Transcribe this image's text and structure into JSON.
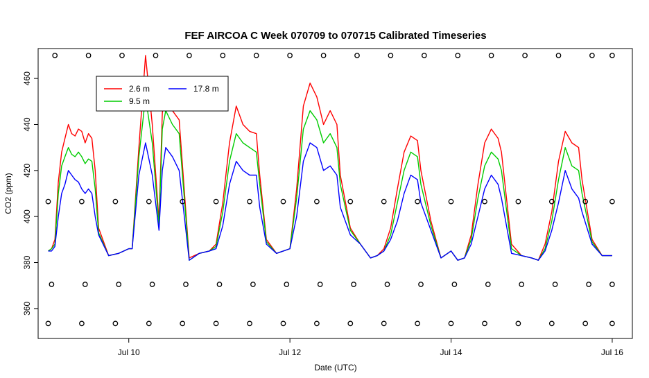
{
  "chart_data": {
    "type": "line",
    "title": "FEF AIRCOA C  Week 070709 to 070715  Calibrated Timeseries",
    "xlabel": "Date (UTC)",
    "ylabel": "CO2 (ppm)",
    "xlim": [
      "2007-07-08T21:00",
      "2007-07-16T06:00"
    ],
    "ylim": [
      347,
      473
    ],
    "x_ticks": [
      {
        "date": "2007-07-10T00:00",
        "label": "Jul 10"
      },
      {
        "date": "2007-07-12T00:00",
        "label": "Jul 12"
      },
      {
        "date": "2007-07-14T00:00",
        "label": "Jul 14"
      },
      {
        "date": "2007-07-16T00:00",
        "label": "Jul 16"
      }
    ],
    "y_ticks": [
      360,
      380,
      400,
      420,
      440,
      460
    ],
    "grid": false,
    "legend_position": "top-left",
    "legend": [
      {
        "label": "2.6 m",
        "color": "#ff0000"
      },
      {
        "label": "17.8 m",
        "color": "#0000ff"
      },
      {
        "label": "9.5 m",
        "color": "#00cc00"
      }
    ],
    "series": [
      {
        "name": "2.6 m",
        "color": "#ff0000",
        "x": [
          "2007-07-09T00:00",
          "2007-07-09T01:00",
          "2007-07-09T02:00",
          "2007-07-09T03:00",
          "2007-07-09T04:00",
          "2007-07-09T05:00",
          "2007-07-09T06:00",
          "2007-07-09T07:00",
          "2007-07-09T08:00",
          "2007-07-09T09:00",
          "2007-07-09T10:00",
          "2007-07-09T11:00",
          "2007-07-09T12:00",
          "2007-07-09T13:00",
          "2007-07-09T14:00",
          "2007-07-09T15:00",
          "2007-07-09T18:00",
          "2007-07-09T21:00",
          "2007-07-10T00:00",
          "2007-07-10T01:00",
          "2007-07-10T03:00",
          "2007-07-10T05:00",
          "2007-07-10T07:00",
          "2007-07-10T09:00",
          "2007-07-10T10:00",
          "2007-07-10T11:00",
          "2007-07-10T13:00",
          "2007-07-10T15:00",
          "2007-07-10T18:00",
          "2007-07-10T21:00",
          "2007-07-11T00:00",
          "2007-07-11T02:00",
          "2007-07-11T04:00",
          "2007-07-11T06:00",
          "2007-07-11T08:00",
          "2007-07-11T10:00",
          "2007-07-11T12:00",
          "2007-07-11T14:00",
          "2007-07-11T15:00",
          "2007-07-11T17:00",
          "2007-07-11T20:00",
          "2007-07-12T00:00",
          "2007-07-12T02:00",
          "2007-07-12T04:00",
          "2007-07-12T06:00",
          "2007-07-12T08:00",
          "2007-07-12T10:00",
          "2007-07-12T12:00",
          "2007-07-12T14:00",
          "2007-07-12T15:00",
          "2007-07-12T18:00",
          "2007-07-12T21:00",
          "2007-07-13T00:00",
          "2007-07-13T02:00",
          "2007-07-13T04:00",
          "2007-07-13T06:00",
          "2007-07-13T08:00",
          "2007-07-13T10:00",
          "2007-07-13T12:00",
          "2007-07-13T14:00",
          "2007-07-13T15:00",
          "2007-07-13T18:00",
          "2007-07-13T21:00",
          "2007-07-14T00:00",
          "2007-07-14T02:00",
          "2007-07-14T04:00",
          "2007-07-14T06:00",
          "2007-07-14T08:00",
          "2007-07-14T10:00",
          "2007-07-14T12:00",
          "2007-07-14T14:00",
          "2007-07-14T15:00",
          "2007-07-14T18:00",
          "2007-07-14T21:00",
          "2007-07-15T00:00",
          "2007-07-15T02:00",
          "2007-07-15T04:00",
          "2007-07-15T06:00",
          "2007-07-15T08:00",
          "2007-07-15T10:00",
          "2007-07-15T12:00",
          "2007-07-15T14:00",
          "2007-07-15T15:00",
          "2007-07-15T18:00",
          "2007-07-15T21:00",
          "2007-07-16T00:00"
        ],
        "values": [
          385,
          386,
          390,
          415,
          428,
          434,
          440,
          436,
          435,
          438,
          437,
          432,
          436,
          434,
          420,
          395,
          383,
          384,
          386,
          386,
          430,
          470,
          440,
          398,
          445,
          455,
          446,
          442,
          382,
          384,
          385,
          388,
          406,
          432,
          448,
          440,
          437,
          436,
          418,
          390,
          384,
          386,
          412,
          448,
          458,
          452,
          440,
          446,
          440,
          418,
          395,
          388,
          382,
          383,
          386,
          395,
          412,
          428,
          435,
          433,
          420,
          398,
          382,
          385,
          381,
          382,
          392,
          414,
          432,
          438,
          434,
          428,
          388,
          383,
          382,
          381,
          388,
          402,
          424,
          437,
          432,
          430,
          416,
          390,
          383,
          383
        ]
      },
      {
        "name": "9.5 m",
        "color": "#00cc00",
        "x": [
          "2007-07-09T00:00",
          "2007-07-09T01:00",
          "2007-07-09T02:00",
          "2007-07-09T03:00",
          "2007-07-09T04:00",
          "2007-07-09T05:00",
          "2007-07-09T06:00",
          "2007-07-09T07:00",
          "2007-07-09T08:00",
          "2007-07-09T09:00",
          "2007-07-09T10:00",
          "2007-07-09T11:00",
          "2007-07-09T12:00",
          "2007-07-09T13:00",
          "2007-07-09T14:00",
          "2007-07-09T15:00",
          "2007-07-09T18:00",
          "2007-07-09T21:00",
          "2007-07-10T00:00",
          "2007-07-10T01:00",
          "2007-07-10T03:00",
          "2007-07-10T05:00",
          "2007-07-10T07:00",
          "2007-07-10T09:00",
          "2007-07-10T10:00",
          "2007-07-10T11:00",
          "2007-07-10T13:00",
          "2007-07-10T15:00",
          "2007-07-10T18:00",
          "2007-07-10T21:00",
          "2007-07-11T00:00",
          "2007-07-11T02:00",
          "2007-07-11T04:00",
          "2007-07-11T06:00",
          "2007-07-11T08:00",
          "2007-07-11T10:00",
          "2007-07-11T12:00",
          "2007-07-11T14:00",
          "2007-07-11T15:00",
          "2007-07-11T17:00",
          "2007-07-11T20:00",
          "2007-07-12T00:00",
          "2007-07-12T02:00",
          "2007-07-12T04:00",
          "2007-07-12T06:00",
          "2007-07-12T08:00",
          "2007-07-12T10:00",
          "2007-07-12T12:00",
          "2007-07-12T14:00",
          "2007-07-12T15:00",
          "2007-07-12T18:00",
          "2007-07-12T21:00",
          "2007-07-13T00:00",
          "2007-07-13T02:00",
          "2007-07-13T04:00",
          "2007-07-13T06:00",
          "2007-07-13T08:00",
          "2007-07-13T10:00",
          "2007-07-13T12:00",
          "2007-07-13T14:00",
          "2007-07-13T15:00",
          "2007-07-13T18:00",
          "2007-07-13T21:00",
          "2007-07-14T00:00",
          "2007-07-14T02:00",
          "2007-07-14T04:00",
          "2007-07-14T06:00",
          "2007-07-14T08:00",
          "2007-07-14T10:00",
          "2007-07-14T12:00",
          "2007-07-14T14:00",
          "2007-07-14T15:00",
          "2007-07-14T18:00",
          "2007-07-14T21:00",
          "2007-07-15T00:00",
          "2007-07-15T02:00",
          "2007-07-15T04:00",
          "2007-07-15T06:00",
          "2007-07-15T08:00",
          "2007-07-15T10:00",
          "2007-07-15T12:00",
          "2007-07-15T14:00",
          "2007-07-15T15:00",
          "2007-07-15T18:00",
          "2007-07-15T21:00",
          "2007-07-16T00:00"
        ],
        "values": [
          385,
          386,
          388,
          410,
          422,
          426,
          430,
          427,
          426,
          428,
          426,
          423,
          425,
          424,
          412,
          393,
          383,
          384,
          386,
          386,
          426,
          452,
          432,
          396,
          438,
          446,
          440,
          436,
          381,
          384,
          385,
          387,
          402,
          424,
          436,
          432,
          430,
          428,
          414,
          389,
          384,
          386,
          408,
          438,
          446,
          442,
          432,
          436,
          430,
          414,
          394,
          388,
          382,
          383,
          385,
          392,
          406,
          420,
          428,
          426,
          414,
          396,
          382,
          385,
          381,
          382,
          390,
          408,
          422,
          428,
          425,
          420,
          386,
          383,
          382,
          381,
          386,
          398,
          416,
          430,
          422,
          420,
          410,
          389,
          383,
          383
        ]
      },
      {
        "name": "17.8 m",
        "color": "#0000ff",
        "x": [
          "2007-07-09T00:00",
          "2007-07-09T01:00",
          "2007-07-09T02:00",
          "2007-07-09T03:00",
          "2007-07-09T04:00",
          "2007-07-09T05:00",
          "2007-07-09T06:00",
          "2007-07-09T07:00",
          "2007-07-09T08:00",
          "2007-07-09T09:00",
          "2007-07-09T10:00",
          "2007-07-09T11:00",
          "2007-07-09T12:00",
          "2007-07-09T13:00",
          "2007-07-09T14:00",
          "2007-07-09T15:00",
          "2007-07-09T18:00",
          "2007-07-09T21:00",
          "2007-07-10T00:00",
          "2007-07-10T01:00",
          "2007-07-10T03:00",
          "2007-07-10T05:00",
          "2007-07-10T07:00",
          "2007-07-10T09:00",
          "2007-07-10T10:00",
          "2007-07-10T11:00",
          "2007-07-10T13:00",
          "2007-07-10T15:00",
          "2007-07-10T18:00",
          "2007-07-10T21:00",
          "2007-07-11T00:00",
          "2007-07-11T02:00",
          "2007-07-11T04:00",
          "2007-07-11T06:00",
          "2007-07-11T08:00",
          "2007-07-11T10:00",
          "2007-07-11T12:00",
          "2007-07-11T14:00",
          "2007-07-11T15:00",
          "2007-07-11T17:00",
          "2007-07-11T20:00",
          "2007-07-12T00:00",
          "2007-07-12T02:00",
          "2007-07-12T04:00",
          "2007-07-12T06:00",
          "2007-07-12T08:00",
          "2007-07-12T10:00",
          "2007-07-12T12:00",
          "2007-07-12T14:00",
          "2007-07-12T15:00",
          "2007-07-12T18:00",
          "2007-07-12T21:00",
          "2007-07-13T00:00",
          "2007-07-13T02:00",
          "2007-07-13T04:00",
          "2007-07-13T06:00",
          "2007-07-13T08:00",
          "2007-07-13T10:00",
          "2007-07-13T12:00",
          "2007-07-13T14:00",
          "2007-07-13T15:00",
          "2007-07-13T18:00",
          "2007-07-13T21:00",
          "2007-07-14T00:00",
          "2007-07-14T02:00",
          "2007-07-14T04:00",
          "2007-07-14T06:00",
          "2007-07-14T08:00",
          "2007-07-14T10:00",
          "2007-07-14T12:00",
          "2007-07-14T14:00",
          "2007-07-14T15:00",
          "2007-07-14T18:00",
          "2007-07-14T21:00",
          "2007-07-15T00:00",
          "2007-07-15T02:00",
          "2007-07-15T04:00",
          "2007-07-15T06:00",
          "2007-07-15T08:00",
          "2007-07-15T10:00",
          "2007-07-15T12:00",
          "2007-07-15T14:00",
          "2007-07-15T15:00",
          "2007-07-15T18:00",
          "2007-07-15T21:00",
          "2007-07-16T00:00"
        ],
        "values": [
          385,
          385,
          387,
          400,
          410,
          414,
          420,
          418,
          416,
          415,
          412,
          410,
          412,
          410,
          400,
          392,
          383,
          384,
          386,
          386,
          418,
          432,
          418,
          394,
          420,
          430,
          426,
          420,
          381,
          384,
          385,
          386,
          396,
          414,
          424,
          420,
          418,
          418,
          404,
          388,
          384,
          386,
          400,
          424,
          432,
          430,
          420,
          422,
          418,
          404,
          392,
          388,
          382,
          383,
          385,
          390,
          398,
          410,
          418,
          416,
          406,
          394,
          382,
          385,
          381,
          382,
          388,
          400,
          412,
          418,
          414,
          408,
          384,
          383,
          382,
          381,
          385,
          394,
          406,
          420,
          412,
          408,
          402,
          388,
          383,
          383
        ]
      },
      {
        "name": "",
        "color": "#000000",
        "marker": "circle",
        "x": [
          "2007-07-09T02:00",
          "2007-07-09T12:00",
          "2007-07-09T22:00",
          "2007-07-10T08:00",
          "2007-07-10T18:00",
          "2007-07-11T04:00",
          "2007-07-11T14:00",
          "2007-07-12T00:00",
          "2007-07-12T10:00",
          "2007-07-12T20:00",
          "2007-07-13T06:00",
          "2007-07-13T16:00",
          "2007-07-14T02:00",
          "2007-07-14T12:00",
          "2007-07-14T22:00",
          "2007-07-15T08:00",
          "2007-07-15T18:00",
          "2007-07-16T00:00"
        ],
        "values": [
          470,
          470,
          470,
          470,
          470,
          470,
          470,
          470,
          470,
          470,
          470,
          470,
          470,
          470,
          470,
          470,
          470,
          470
        ]
      },
      {
        "name": "",
        "color": "#000000",
        "marker": "circle",
        "x": [
          "2007-07-09T00:00",
          "2007-07-09T10:00",
          "2007-07-09T20:00",
          "2007-07-10T06:00",
          "2007-07-10T16:00",
          "2007-07-11T02:00",
          "2007-07-11T12:00",
          "2007-07-11T22:00",
          "2007-07-12T08:00",
          "2007-07-12T18:00",
          "2007-07-13T04:00",
          "2007-07-13T14:00",
          "2007-07-14T00:00",
          "2007-07-14T10:00",
          "2007-07-14T20:00",
          "2007-07-15T06:00",
          "2007-07-15T16:00",
          "2007-07-16T00:00"
        ],
        "values": [
          406.5,
          406.5,
          406.5,
          406.5,
          406.5,
          406.5,
          406.5,
          406.5,
          406.5,
          406.5,
          406.5,
          406.5,
          406.5,
          406.5,
          406.5,
          406.5,
          406.5,
          406.5
        ]
      },
      {
        "name": "",
        "color": "#000000",
        "marker": "circle",
        "x": [
          "2007-07-09T01:00",
          "2007-07-09T11:00",
          "2007-07-09T21:00",
          "2007-07-10T07:00",
          "2007-07-10T17:00",
          "2007-07-11T03:00",
          "2007-07-11T13:00",
          "2007-07-11T23:00",
          "2007-07-12T09:00",
          "2007-07-12T19:00",
          "2007-07-13T05:00",
          "2007-07-13T15:00",
          "2007-07-14T01:00",
          "2007-07-14T11:00",
          "2007-07-14T21:00",
          "2007-07-15T07:00",
          "2007-07-15T17:00",
          "2007-07-16T00:00"
        ],
        "values": [
          370.5,
          370.5,
          370.5,
          370.5,
          370.5,
          370.5,
          370.5,
          370.5,
          370.5,
          370.5,
          370.5,
          370.5,
          370.5,
          370.5,
          370.5,
          370.5,
          370.5,
          370.5
        ]
      },
      {
        "name": "",
        "color": "#000000",
        "marker": "circle",
        "x": [
          "2007-07-09T00:00",
          "2007-07-09T10:00",
          "2007-07-09T20:00",
          "2007-07-10T06:00",
          "2007-07-10T16:00",
          "2007-07-11T02:00",
          "2007-07-11T12:00",
          "2007-07-11T22:00",
          "2007-07-12T08:00",
          "2007-07-12T18:00",
          "2007-07-13T04:00",
          "2007-07-13T14:00",
          "2007-07-14T00:00",
          "2007-07-14T10:00",
          "2007-07-14T20:00",
          "2007-07-15T06:00",
          "2007-07-15T16:00",
          "2007-07-16T00:00"
        ],
        "values": [
          353.5,
          353.5,
          353.5,
          353.5,
          353.5,
          353.5,
          353.5,
          353.5,
          353.5,
          353.5,
          353.5,
          353.5,
          353.5,
          353.5,
          353.5,
          353.5,
          353.5,
          353.5
        ]
      }
    ]
  }
}
